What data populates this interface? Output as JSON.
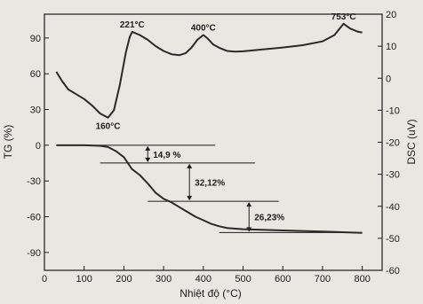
{
  "chart_data": {
    "type": "line",
    "xlabel": "Nhiệt độ (°C)",
    "ylabel_left": "TG (%)",
    "ylabel_right": "DSC (uV)",
    "xlim": [
      0,
      850
    ],
    "ylim_left": [
      -105,
      110
    ],
    "ylim_right": [
      -60,
      20
    ],
    "x_ticks": [
      "0",
      "100",
      "200",
      "300",
      "400",
      "500",
      "600",
      "700",
      "800"
    ],
    "y_left_ticks": [
      "90",
      "60",
      "30",
      "0",
      "-30",
      "-60",
      "-90"
    ],
    "y_right_ticks": [
      "20",
      "10",
      "0",
      "-10",
      "-20",
      "-30",
      "-40",
      "-50",
      "-60"
    ],
    "series": [
      {
        "axis": "right",
        "points": [
          [
            30,
            2
          ],
          [
            45,
            -1
          ],
          [
            60,
            -3.5
          ],
          [
            80,
            -5
          ],
          [
            100,
            -6.5
          ],
          [
            120,
            -8.5
          ],
          [
            140,
            -11
          ],
          [
            160,
            -12.3
          ],
          [
            175,
            -10
          ],
          [
            190,
            -2
          ],
          [
            205,
            8
          ],
          [
            215,
            13
          ],
          [
            221,
            14.5
          ],
          [
            240,
            13.5
          ],
          [
            260,
            12
          ],
          [
            280,
            10
          ],
          [
            300,
            8.5
          ],
          [
            320,
            7.5
          ],
          [
            340,
            7.2
          ],
          [
            355,
            7.8
          ],
          [
            370,
            9.5
          ],
          [
            385,
            12
          ],
          [
            400,
            13.5
          ],
          [
            410,
            12.5
          ],
          [
            425,
            10.5
          ],
          [
            440,
            9.5
          ],
          [
            460,
            8.5
          ],
          [
            480,
            8.3
          ],
          [
            500,
            8.4
          ],
          [
            550,
            9
          ],
          [
            600,
            9.6
          ],
          [
            650,
            10.3
          ],
          [
            700,
            11.5
          ],
          [
            730,
            13.5
          ],
          [
            753,
            17
          ],
          [
            770,
            15.5
          ],
          [
            790,
            14.5
          ],
          [
            800,
            14.3
          ]
        ]
      },
      {
        "axis": "left",
        "points": [
          [
            30,
            0
          ],
          [
            100,
            0
          ],
          [
            140,
            -0.5
          ],
          [
            160,
            -1.5
          ],
          [
            180,
            -5
          ],
          [
            200,
            -10
          ],
          [
            220,
            -20
          ],
          [
            240,
            -25
          ],
          [
            260,
            -32
          ],
          [
            280,
            -40
          ],
          [
            300,
            -45
          ],
          [
            320,
            -48
          ],
          [
            340,
            -52
          ],
          [
            360,
            -56
          ],
          [
            380,
            -60
          ],
          [
            400,
            -63
          ],
          [
            420,
            -66
          ],
          [
            440,
            -68
          ],
          [
            460,
            -69.5
          ],
          [
            480,
            -70
          ],
          [
            500,
            -70.5
          ],
          [
            600,
            -71.5
          ],
          [
            700,
            -72.5
          ],
          [
            800,
            -73.5
          ]
        ]
      }
    ],
    "annotations": [
      {
        "text": "160°C",
        "x": 160,
        "y": -12.3,
        "axis": "right"
      },
      {
        "text": "221°C",
        "x": 221,
        "y": 14.5,
        "axis": "right"
      },
      {
        "text": "400°C",
        "x": 400,
        "y": 13.5,
        "axis": "right"
      },
      {
        "text": "753°C",
        "x": 753,
        "y": 17,
        "axis": "right"
      },
      {
        "text": "14,9 %",
        "from": 0,
        "to": -14.9,
        "x": 260
      },
      {
        "text": "32,12%",
        "from": -14.9,
        "to": -47.02,
        "x": 365
      },
      {
        "text": "26,23%",
        "from": -47.02,
        "to": -73.25,
        "x": 515
      }
    ],
    "reference_lines": [
      {
        "y": 0,
        "x1": 30,
        "x2": 430
      },
      {
        "y": -14.9,
        "x1": 140,
        "x2": 530
      },
      {
        "y": -47.02,
        "x1": 260,
        "x2": 590
      },
      {
        "y": -73.25,
        "x1": 440,
        "x2": 800
      }
    ]
  },
  "colors": {
    "curve": "#2a2a2a",
    "axis": "#1d1d1d",
    "paper": "#e9e7e1"
  }
}
